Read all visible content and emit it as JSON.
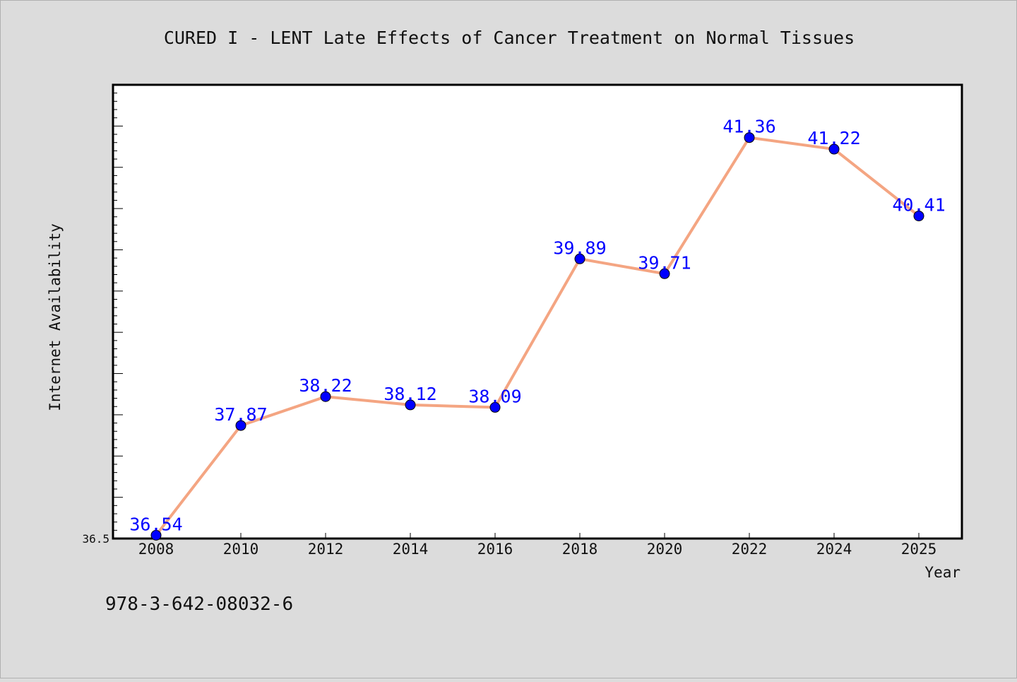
{
  "title": "CURED I - LENT Late Effects of Cancer Treatment on Normal Tissues",
  "footer_text": "978-3-642-08032-6",
  "colors": {
    "background": "#dcdcdc",
    "plot_area": "#ffffff",
    "line": "#f4a582",
    "marker": "#0000ff",
    "data_label": "#0000ff",
    "axis": "#000000"
  },
  "chart_data": {
    "type": "line",
    "title": "CURED I - LENT Late Effects of Cancer Treatment on Normal Tissues",
    "xlabel": "Year",
    "ylabel": "Internet Availability",
    "categories": [
      "2008",
      "2010",
      "2012",
      "2014",
      "2016",
      "2018",
      "2020",
      "2022",
      "2024",
      "2025"
    ],
    "series": [
      {
        "values": [
          36.54,
          37.87,
          38.22,
          38.12,
          38.09,
          39.89,
          39.71,
          41.36,
          41.22,
          40.41
        ],
        "labels": [
          "36.54",
          "37.87",
          "38.22",
          "38.12",
          "38.09",
          "39.89",
          "39.71",
          "41.36",
          "41.22",
          "40.41"
        ]
      }
    ],
    "ylim": [
      36.5,
      42.0
    ],
    "yticks": [
      36.5
    ],
    "y_tick_labels": [
      "36.5"
    ],
    "y_minor_step": 0.1,
    "y_major_step": 0.5,
    "grid": false,
    "marker": "circle"
  }
}
